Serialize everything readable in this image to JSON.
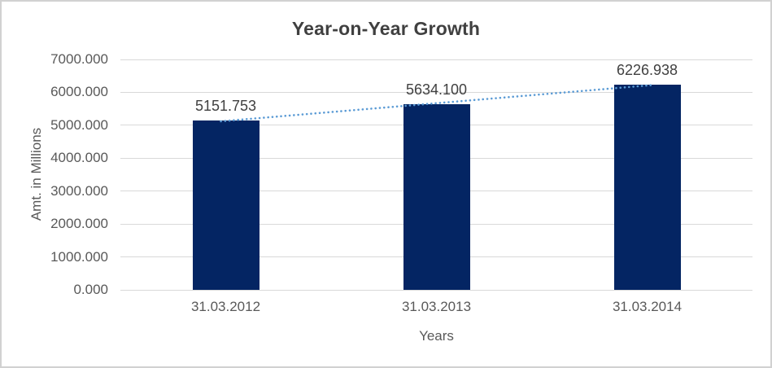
{
  "chart": {
    "title": "Year-on-Year Growth",
    "x_axis_title": "Years",
    "y_axis_title": "Amt. in Millions"
  },
  "chart_data": {
    "type": "bar",
    "title": "Year-on-Year Growth",
    "xlabel": "Years",
    "ylabel": "Amt. in Millions",
    "categories": [
      "31.03.2012",
      "31.03.2013",
      "31.03.2014"
    ],
    "values": [
      5151.753,
      5634.1,
      6226.938
    ],
    "data_labels": [
      "5151.753",
      "5634.100",
      "6226.938"
    ],
    "y_ticks": [
      0,
      1000,
      2000,
      3000,
      4000,
      5000,
      6000,
      7000
    ],
    "y_tick_labels": [
      "0.000",
      "1000.000",
      "2000.000",
      "3000.000",
      "4000.000",
      "5000.000",
      "6000.000",
      "7000.000"
    ],
    "ylim": [
      0,
      7000
    ],
    "grid": true,
    "legend": false,
    "trendline": {
      "type": "linear",
      "style": "dotted",
      "color": "#5b9bd5"
    },
    "colors": {
      "bar": "#042563",
      "gridline": "#d9d9d9",
      "title_text": "#404040",
      "axis_text": "#595959",
      "data_label_text": "#404040",
      "background": "#ffffff",
      "border": "#d1d1d1"
    }
  }
}
